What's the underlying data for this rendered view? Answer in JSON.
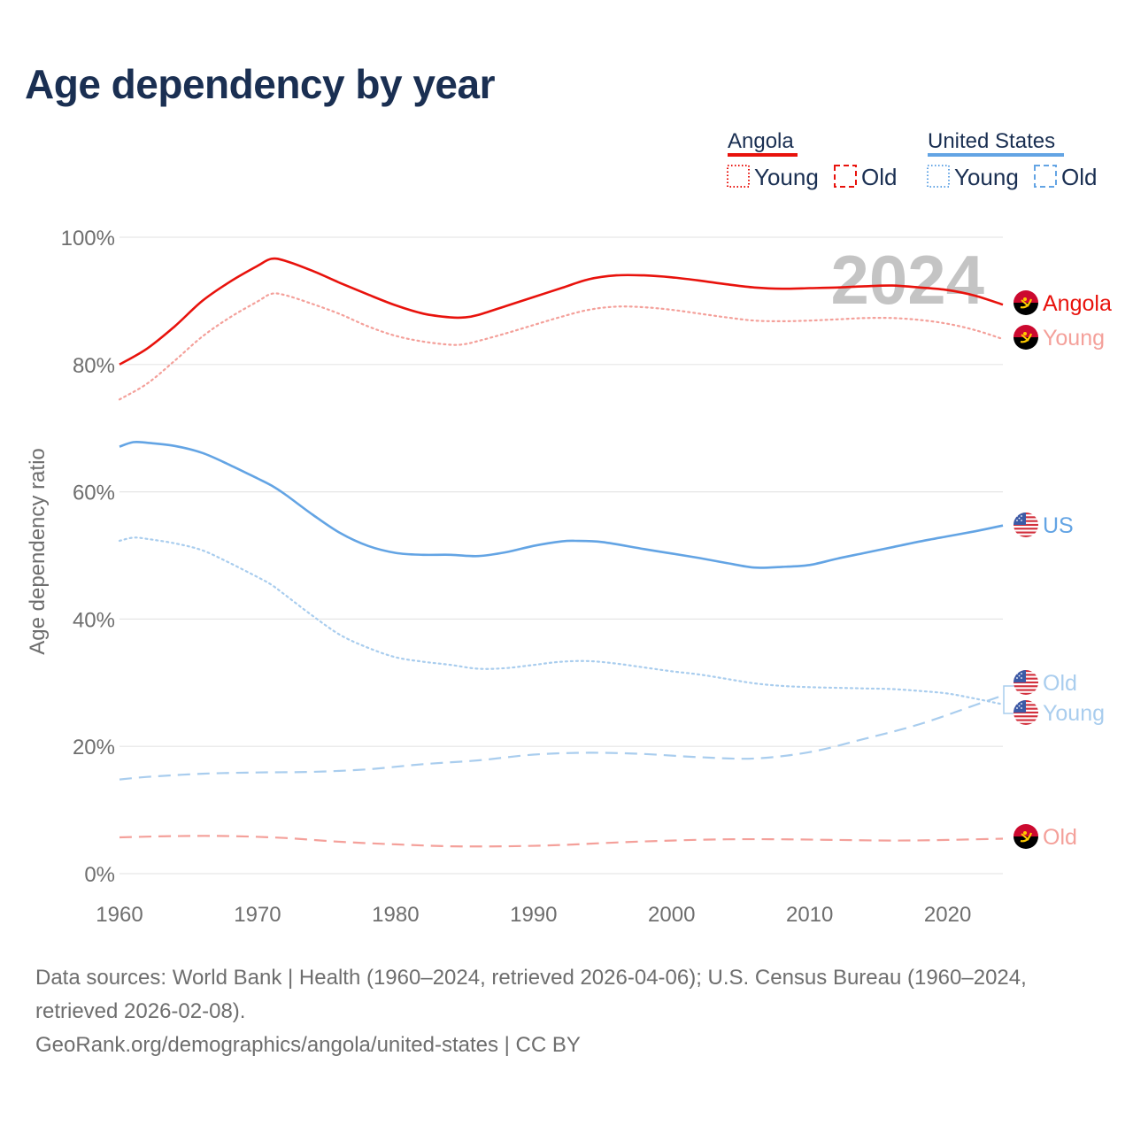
{
  "title": "Age dependency by year",
  "year_overlay": "2024",
  "legend": {
    "groups": [
      {
        "name": "Angola",
        "color": "#e8120c",
        "young_label": "Young",
        "old_label": "Old"
      },
      {
        "name": "United States",
        "color": "#63a4e4",
        "young_label": "Young",
        "old_label": "Old"
      }
    ]
  },
  "end_labels": {
    "angola_total": "Angola",
    "angola_young": "Young",
    "angola_old": "Old",
    "us_total": "US",
    "us_old": "Old",
    "us_young": "Young"
  },
  "footer": {
    "sources": "Data sources: World Bank | Health (1960–2024, retrieved 2026-04-06); U.S. Census Bureau (1960–2024, retrieved 2026-02-08).",
    "link": "GeoRank.org/demographics/angola/united-states | CC BY"
  },
  "colors": {
    "angola": "#e8120c",
    "angola_light": "#f4a09a",
    "us": "#63a4e4",
    "us_light": "#a9cdee",
    "grid": "#e6e6e6",
    "tick_text": "#6e6e6e",
    "year_overlay": "#c4c4c4"
  },
  "chart_data": {
    "type": "line",
    "title": "Age dependency by year",
    "xlabel": "",
    "ylabel": "Age dependency ratio",
    "xlim": [
      1960,
      2024
    ],
    "ylim": [
      0,
      100
    ],
    "x_ticks": [
      1960,
      1970,
      1980,
      1990,
      2000,
      2010,
      2020
    ],
    "y_ticks": [
      0,
      20,
      40,
      60,
      80,
      100
    ],
    "y_tick_labels": [
      "0%",
      "20%",
      "40%",
      "60%",
      "80%",
      "100%"
    ],
    "series": [
      {
        "name": "Angola",
        "style": "solid",
        "color_key": "angola",
        "label_key": "angola_total",
        "points": [
          [
            1960,
            80
          ],
          [
            1962,
            82.5
          ],
          [
            1964,
            86
          ],
          [
            1966,
            90
          ],
          [
            1968,
            93
          ],
          [
            1970,
            95.5
          ],
          [
            1971,
            96.6
          ],
          [
            1972,
            96.3
          ],
          [
            1974,
            94.7
          ],
          [
            1976,
            92.8
          ],
          [
            1978,
            91
          ],
          [
            1980,
            89.3
          ],
          [
            1982,
            88
          ],
          [
            1984,
            87.4
          ],
          [
            1985,
            87.4
          ],
          [
            1986,
            87.8
          ],
          [
            1988,
            89.2
          ],
          [
            1990,
            90.6
          ],
          [
            1992,
            92
          ],
          [
            1994,
            93.4
          ],
          [
            1996,
            94
          ],
          [
            1998,
            94
          ],
          [
            2000,
            93.7
          ],
          [
            2002,
            93.2
          ],
          [
            2004,
            92.6
          ],
          [
            2006,
            92.1
          ],
          [
            2008,
            91.9
          ],
          [
            2010,
            92
          ],
          [
            2012,
            92.1
          ],
          [
            2014,
            92.3
          ],
          [
            2016,
            92.4
          ],
          [
            2018,
            92.1
          ],
          [
            2020,
            91.7
          ],
          [
            2022,
            90.8
          ],
          [
            2024,
            89.4
          ]
        ]
      },
      {
        "name": "Angola Young",
        "style": "dotted",
        "color_key": "angola_light",
        "label_key": "angola_young",
        "points": [
          [
            1960,
            74.5
          ],
          [
            1962,
            77
          ],
          [
            1964,
            80.6
          ],
          [
            1966,
            84.4
          ],
          [
            1968,
            87.4
          ],
          [
            1970,
            89.9
          ],
          [
            1971,
            91.1
          ],
          [
            1972,
            90.9
          ],
          [
            1974,
            89.5
          ],
          [
            1976,
            87.9
          ],
          [
            1978,
            86
          ],
          [
            1980,
            84.5
          ],
          [
            1982,
            83.6
          ],
          [
            1984,
            83.1
          ],
          [
            1985,
            83.2
          ],
          [
            1986,
            83.7
          ],
          [
            1988,
            84.9
          ],
          [
            1990,
            86.2
          ],
          [
            1992,
            87.5
          ],
          [
            1994,
            88.6
          ],
          [
            1996,
            89.1
          ],
          [
            1998,
            89
          ],
          [
            2000,
            88.6
          ],
          [
            2002,
            88
          ],
          [
            2004,
            87.4
          ],
          [
            2006,
            86.9
          ],
          [
            2008,
            86.8
          ],
          [
            2010,
            86.9
          ],
          [
            2012,
            87.1
          ],
          [
            2014,
            87.3
          ],
          [
            2016,
            87.3
          ],
          [
            2018,
            87
          ],
          [
            2020,
            86.4
          ],
          [
            2022,
            85.4
          ],
          [
            2024,
            84
          ]
        ]
      },
      {
        "name": "Angola Old",
        "style": "dashed",
        "color_key": "angola_light",
        "label_key": "angola_old",
        "points": [
          [
            1960,
            5.7
          ],
          [
            1964,
            5.9
          ],
          [
            1968,
            5.9
          ],
          [
            1972,
            5.6
          ],
          [
            1976,
            5
          ],
          [
            1980,
            4.6
          ],
          [
            1984,
            4.3
          ],
          [
            1988,
            4.3
          ],
          [
            1992,
            4.5
          ],
          [
            1996,
            4.9
          ],
          [
            2000,
            5.2
          ],
          [
            2004,
            5.4
          ],
          [
            2008,
            5.4
          ],
          [
            2012,
            5.3
          ],
          [
            2016,
            5.2
          ],
          [
            2020,
            5.3
          ],
          [
            2024,
            5.5
          ]
        ]
      },
      {
        "name": "US",
        "style": "solid",
        "color_key": "us",
        "label_key": "us_total",
        "points": [
          [
            1960,
            67.1
          ],
          [
            1961,
            67.8
          ],
          [
            1962,
            67.7
          ],
          [
            1964,
            67.2
          ],
          [
            1966,
            66.1
          ],
          [
            1968,
            64.2
          ],
          [
            1970,
            62.1
          ],
          [
            1971,
            61
          ],
          [
            1972,
            59.6
          ],
          [
            1974,
            56.4
          ],
          [
            1976,
            53.5
          ],
          [
            1978,
            51.5
          ],
          [
            1980,
            50.4
          ],
          [
            1982,
            50.1
          ],
          [
            1984,
            50.1
          ],
          [
            1986,
            49.9
          ],
          [
            1988,
            50.5
          ],
          [
            1990,
            51.5
          ],
          [
            1992,
            52.2
          ],
          [
            1993,
            52.3
          ],
          [
            1995,
            52.1
          ],
          [
            1998,
            51
          ],
          [
            2000,
            50.3
          ],
          [
            2002,
            49.6
          ],
          [
            2004,
            48.8
          ],
          [
            2006,
            48.1
          ],
          [
            2008,
            48.2
          ],
          [
            2010,
            48.5
          ],
          [
            2012,
            49.5
          ],
          [
            2014,
            50.4
          ],
          [
            2016,
            51.3
          ],
          [
            2018,
            52.2
          ],
          [
            2020,
            53
          ],
          [
            2022,
            53.8
          ],
          [
            2024,
            54.7
          ]
        ]
      },
      {
        "name": "US Young",
        "style": "dotted",
        "color_key": "us_light",
        "label_key": "us_young",
        "points": [
          [
            1960,
            52.3
          ],
          [
            1961,
            52.8
          ],
          [
            1962,
            52.6
          ],
          [
            1964,
            51.9
          ],
          [
            1966,
            50.8
          ],
          [
            1968,
            48.8
          ],
          [
            1970,
            46.6
          ],
          [
            1971,
            45.4
          ],
          [
            1972,
            43.8
          ],
          [
            1974,
            40.5
          ],
          [
            1976,
            37.5
          ],
          [
            1978,
            35.5
          ],
          [
            1980,
            34
          ],
          [
            1982,
            33.3
          ],
          [
            1984,
            32.8
          ],
          [
            1986,
            32.2
          ],
          [
            1988,
            32.3
          ],
          [
            1990,
            32.8
          ],
          [
            1992,
            33.3
          ],
          [
            1994,
            33.4
          ],
          [
            1996,
            33
          ],
          [
            1998,
            32.4
          ],
          [
            2000,
            31.8
          ],
          [
            2002,
            31.3
          ],
          [
            2004,
            30.6
          ],
          [
            2006,
            29.9
          ],
          [
            2008,
            29.5
          ],
          [
            2010,
            29.3
          ],
          [
            2012,
            29.2
          ],
          [
            2014,
            29.1
          ],
          [
            2016,
            29
          ],
          [
            2018,
            28.7
          ],
          [
            2020,
            28.3
          ],
          [
            2022,
            27.5
          ],
          [
            2024,
            26.6
          ]
        ]
      },
      {
        "name": "US Old",
        "style": "dashed",
        "color_key": "us_light",
        "label_key": "us_old",
        "points": [
          [
            1960,
            14.8
          ],
          [
            1962,
            15.2
          ],
          [
            1966,
            15.7
          ],
          [
            1970,
            15.9
          ],
          [
            1974,
            16
          ],
          [
            1978,
            16.4
          ],
          [
            1982,
            17.2
          ],
          [
            1986,
            17.8
          ],
          [
            1990,
            18.7
          ],
          [
            1994,
            19
          ],
          [
            1998,
            18.8
          ],
          [
            2002,
            18.3
          ],
          [
            2006,
            18.1
          ],
          [
            2010,
            19.1
          ],
          [
            2014,
            21.2
          ],
          [
            2018,
            23.5
          ],
          [
            2022,
            26.5
          ],
          [
            2024,
            28
          ]
        ]
      }
    ]
  }
}
